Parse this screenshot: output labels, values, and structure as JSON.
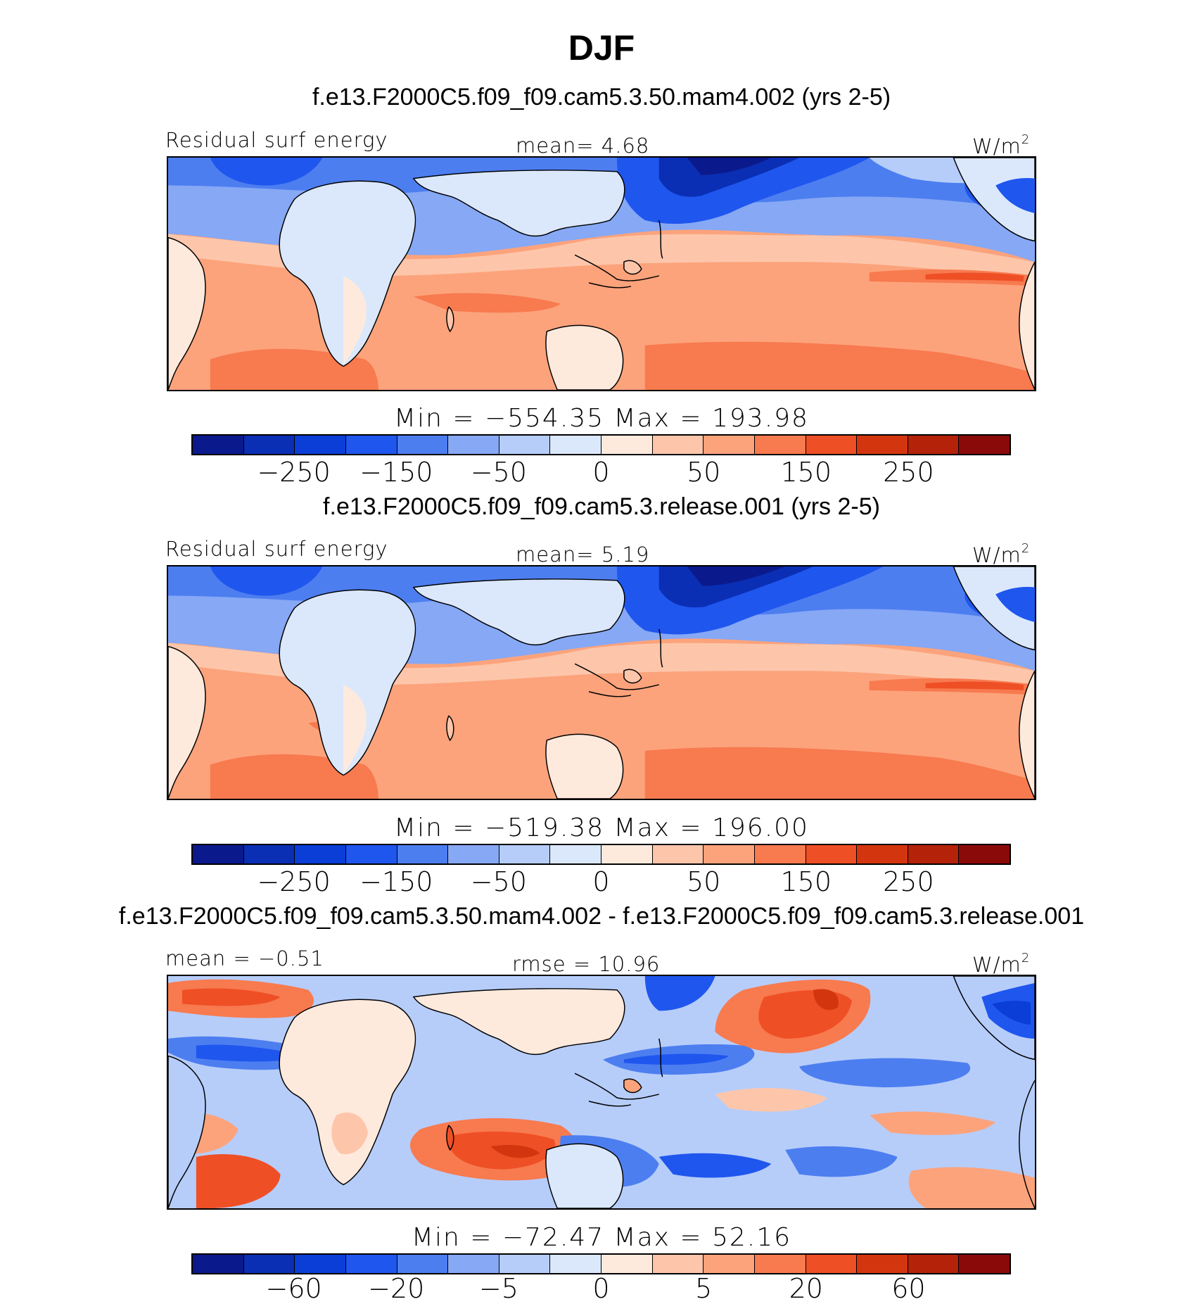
{
  "figure": {
    "title": "DJF",
    "units": "W/m",
    "units_exponent": "2"
  },
  "colorbar_colors": [
    "#0a1a8c",
    "#0a2fb4",
    "#0a3ed6",
    "#1f56ee",
    "#4d7ef0",
    "#86a8f5",
    "#b6cdfa",
    "#dbe8fc",
    "#feeadd",
    "#fdc6ab",
    "#fca37c",
    "#f87a4f",
    "#ef4f25",
    "#d3360e",
    "#b4220a",
    "#8a0a0a"
  ],
  "panels": [
    {
      "case_title": "f.e13.F2000C5.f09_f09.cam5.3.50.mam4.002 (yrs 2-5)",
      "left_label": "Residual surf energy",
      "center_label": "mean=    4.68",
      "minmax": "Min  =  −554.35  Max  =  193.98",
      "ticks": [
        "−250",
        "−150",
        "−50",
        "0",
        "50",
        "150",
        "250"
      ],
      "tick_levels": [
        -250,
        -150,
        -50,
        0,
        50,
        150,
        250
      ]
    },
    {
      "case_title": "f.e13.F2000C5.f09_f09.cam5.3.release.001 (yrs 2-5)",
      "left_label": "Residual surf energy",
      "center_label": "mean=    5.19",
      "minmax": "Min  =  −519.38  Max  =  196.00",
      "ticks": [
        "−250",
        "−150",
        "−50",
        "0",
        "50",
        "150",
        "250"
      ],
      "tick_levels": [
        -250,
        -150,
        -50,
        0,
        50,
        150,
        250
      ]
    },
    {
      "case_title": "f.e13.F2000C5.f09_f09.cam5.3.50.mam4.002 - f.e13.F2000C5.f09_f09.cam5.3.release.001",
      "left_label": "mean  =   −0.51",
      "center_label": "rmse  =   10.96",
      "minmax": "Min  =  −72.47  Max  =   52.16",
      "ticks": [
        "−60",
        "−20",
        "−5",
        "0",
        "5",
        "20",
        "60"
      ],
      "tick_levels": [
        -60,
        -20,
        -5,
        0,
        5,
        20,
        60
      ]
    }
  ]
}
